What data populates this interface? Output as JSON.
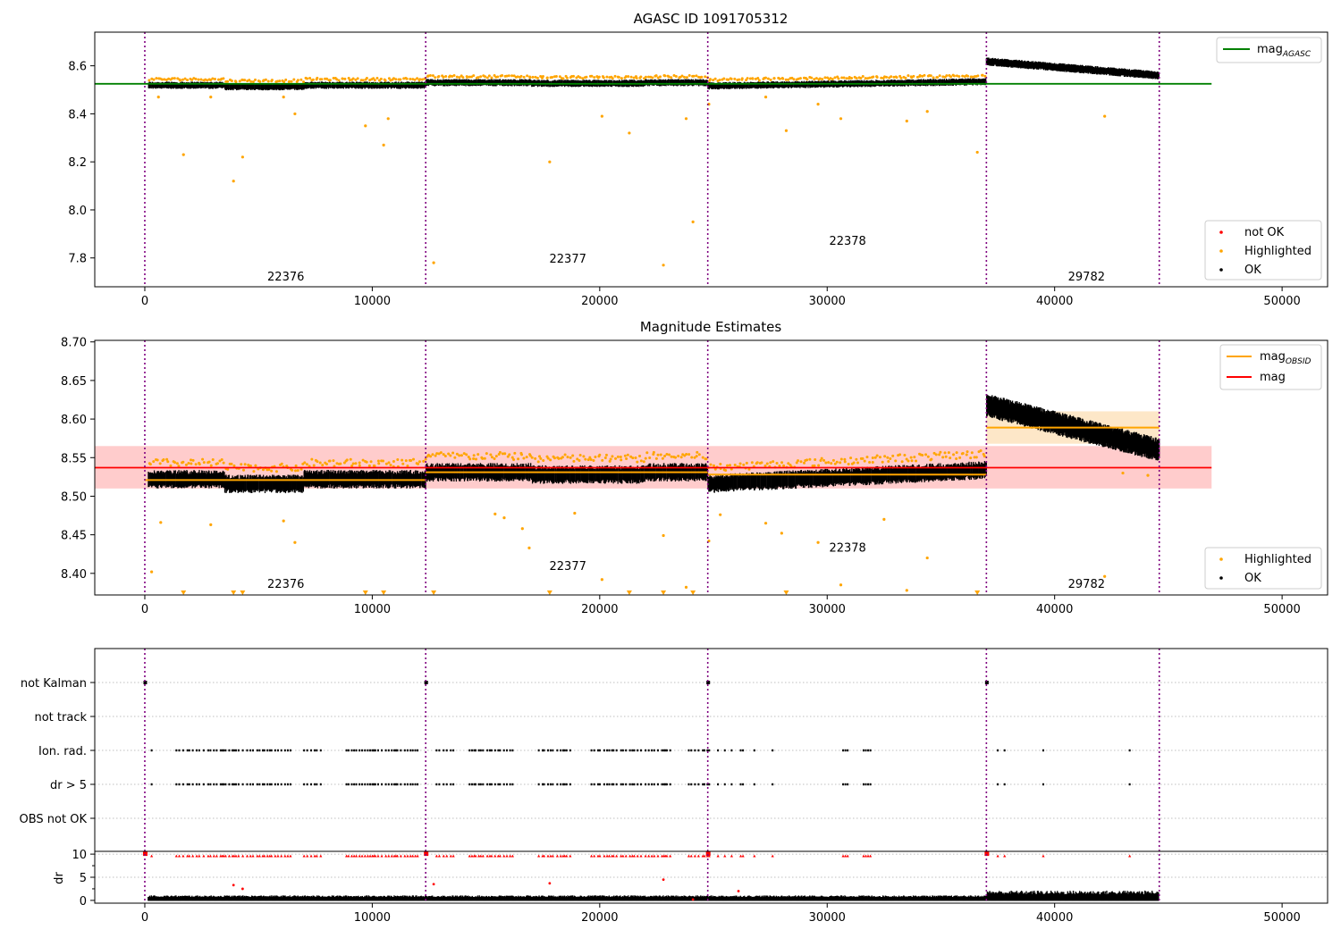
{
  "figure": {
    "title_top": "AGASC ID 1091705312",
    "title_mid": "Magnitude Estimates"
  },
  "colors": {
    "ok": "#000000",
    "highlighted": "#ffa500",
    "not_ok": "#ff0000",
    "mag_agasc": "#008000",
    "mag": "#ff0000",
    "mag_obsid": "#ffa500",
    "obs_boundary": "#800080",
    "mag_band": "#ffcccc",
    "obsid_band": "#fde7c8"
  },
  "chart_data": [
    {
      "type": "scatter",
      "title": "AGASC ID 1091705312",
      "xlim": [
        -2200,
        52000
      ],
      "ylim": [
        7.68,
        8.74
      ],
      "xticks": [
        0,
        10000,
        20000,
        30000,
        40000,
        50000
      ],
      "xtick_labels": [
        "0",
        "10000",
        "20000",
        "30000",
        "40000",
        "50000"
      ],
      "yticks": [
        7.8,
        8.0,
        8.2,
        8.4,
        8.6
      ],
      "ytick_labels": [
        "7.8",
        "8.0",
        "8.2",
        "8.4",
        "8.6"
      ],
      "obs_boundaries": [
        0,
        12350,
        24750,
        37000,
        44600
      ],
      "obsid_labels": [
        {
          "text": "22376",
          "x": 6200,
          "y": 7.72
        },
        {
          "text": "22377",
          "x": 18600,
          "y": 7.795
        },
        {
          "text": "22378",
          "x": 30900,
          "y": 7.87
        },
        {
          "text": "29782",
          "x": 41400,
          "y": 7.72
        }
      ],
      "lines": [
        {
          "name": "mag_AGASC",
          "y": 8.525,
          "x": [
            -2200,
            46900
          ]
        }
      ],
      "series": [
        {
          "name": "not OK",
          "points": []
        },
        {
          "name": "Highlighted",
          "points": [
            [
              600,
              8.47
            ],
            [
              1700,
              8.23
            ],
            [
              2900,
              8.47
            ],
            [
              3900,
              8.12
            ],
            [
              4300,
              8.22
            ],
            [
              6100,
              8.47
            ],
            [
              6600,
              8.4
            ],
            [
              9700,
              8.35
            ],
            [
              10500,
              8.27
            ],
            [
              10700,
              8.38
            ],
            [
              12700,
              7.78
            ],
            [
              17800,
              8.2
            ],
            [
              20100,
              8.39
            ],
            [
              21300,
              8.32
            ],
            [
              22800,
              7.77
            ],
            [
              23800,
              8.38
            ],
            [
              24100,
              7.95
            ],
            [
              24800,
              8.44
            ],
            [
              27300,
              8.47
            ],
            [
              28200,
              8.33
            ],
            [
              29600,
              8.44
            ],
            [
              30600,
              8.38
            ],
            [
              33500,
              8.37
            ],
            [
              34400,
              8.41
            ],
            [
              36600,
              8.24
            ],
            [
              42200,
              8.39
            ]
          ]
        },
        {
          "name": "OK",
          "points": []
        }
      ],
      "legend": [
        "mag_AGASC",
        "not OK",
        "Highlighted",
        "OK"
      ],
      "legend_placement": [
        "upper right",
        "lower right"
      ]
    },
    {
      "type": "scatter",
      "title": "Magnitude Estimates",
      "xlim": [
        -2200,
        52000
      ],
      "ylim": [
        8.372,
        8.702
      ],
      "xticks": [
        0,
        10000,
        20000,
        30000,
        40000,
        50000
      ],
      "xtick_labels": [
        "0",
        "10000",
        "20000",
        "30000",
        "40000",
        "50000"
      ],
      "yticks": [
        8.4,
        8.45,
        8.5,
        8.55,
        8.6,
        8.65,
        8.7
      ],
      "ytick_labels": [
        "8.40",
        "8.45",
        "8.50",
        "8.55",
        "8.60",
        "8.65",
        "8.70"
      ],
      "obs_boundaries": [
        0,
        12350,
        24750,
        37000,
        44600
      ],
      "obsid_labels": [
        {
          "text": "22376",
          "x": 6200,
          "y": 8.386
        },
        {
          "text": "22377",
          "x": 18600,
          "y": 8.409
        },
        {
          "text": "22378",
          "x": 30900,
          "y": 8.433
        },
        {
          "text": "29782",
          "x": 41400,
          "y": 8.386
        }
      ],
      "mag": {
        "value": 8.537,
        "band": [
          8.51,
          8.565
        ],
        "x": [
          -2200,
          46900
        ]
      },
      "mag_obsid": [
        {
          "x": [
            0,
            12350
          ],
          "value": 8.521
        },
        {
          "x": [
            12350,
            24750
          ],
          "value": 8.531
        },
        {
          "x": [
            24750,
            37000
          ],
          "value": 8.528
        },
        {
          "x": [
            37000,
            44600
          ],
          "value": 8.589,
          "band": [
            8.568,
            8.61
          ]
        }
      ],
      "series": [
        {
          "name": "Highlighted",
          "points": [
            [
              300,
              8.402
            ],
            [
              700,
              8.466
            ],
            [
              1700,
              8.375
            ],
            [
              2900,
              8.463
            ],
            [
              3900,
              8.375
            ],
            [
              4300,
              8.375
            ],
            [
              6100,
              8.468
            ],
            [
              6600,
              8.44
            ],
            [
              9700,
              8.375
            ],
            [
              10500,
              8.375
            ],
            [
              12700,
              8.375
            ],
            [
              15400,
              8.477
            ],
            [
              15800,
              8.472
            ],
            [
              16600,
              8.458
            ],
            [
              16900,
              8.433
            ],
            [
              17800,
              8.375
            ],
            [
              18900,
              8.478
            ],
            [
              20100,
              8.392
            ],
            [
              21300,
              8.375
            ],
            [
              22800,
              8.449
            ],
            [
              22800,
              8.375
            ],
            [
              23800,
              8.382
            ],
            [
              24100,
              8.375
            ],
            [
              24800,
              8.442
            ],
            [
              25300,
              8.476
            ],
            [
              27300,
              8.465
            ],
            [
              28000,
              8.452
            ],
            [
              28200,
              8.375
            ],
            [
              29600,
              8.44
            ],
            [
              30600,
              8.385
            ],
            [
              32500,
              8.47
            ],
            [
              33500,
              8.378
            ],
            [
              34400,
              8.42
            ],
            [
              36600,
              8.375
            ],
            [
              42200,
              8.396
            ],
            [
              43000,
              8.53
            ],
            [
              44100,
              8.527
            ]
          ]
        },
        {
          "name": "OK",
          "points": []
        }
      ],
      "legend": [
        "mag_OBSID",
        "mag",
        "Highlighted",
        "OK"
      ],
      "legend_placement": [
        "upper right",
        "lower right"
      ]
    },
    {
      "type": "scatter",
      "title": "",
      "xlim": [
        -2200,
        52000
      ],
      "categories": [
        "not Kalman",
        "not track",
        "Ion. rad.",
        "dr > 5",
        "OBS not OK"
      ],
      "obs_boundaries": [
        0,
        12350,
        24750,
        37000,
        44600
      ],
      "not_kalman_x": [
        0,
        12350,
        24750,
        37000
      ],
      "sparse_flag_times": [
        25200,
        25500,
        25800,
        26200,
        26300,
        26800,
        27600,
        30700,
        30800,
        30900,
        31600,
        31700,
        31800,
        31900,
        37500,
        37800,
        39500,
        43300
      ],
      "dr_axis": {
        "ylabel": "dr",
        "ylim": [
          -0.6,
          10.6
        ],
        "yticks": [
          0,
          5,
          10
        ],
        "ytick_labels": [
          "0",
          "5",
          "10"
        ],
        "outliers": [
          [
            3900,
            3.3
          ],
          [
            4300,
            2.5
          ],
          [
            12700,
            3.5
          ],
          [
            17800,
            3.7
          ],
          [
            22800,
            4.5
          ],
          [
            24100,
            0.2
          ],
          [
            26100,
            2
          ]
        ]
      }
    }
  ]
}
